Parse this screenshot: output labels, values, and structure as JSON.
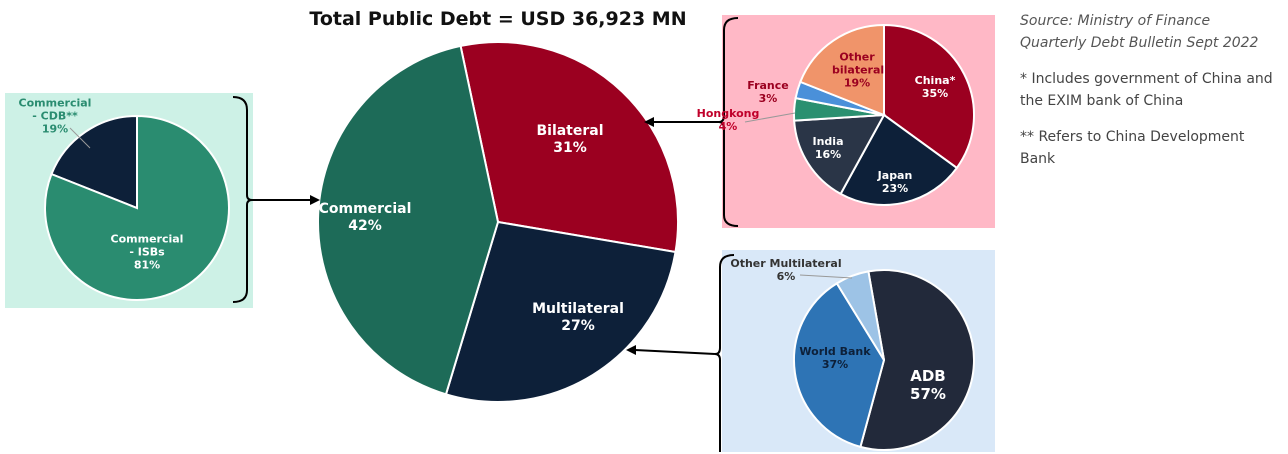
{
  "chart_data": [
    {
      "type": "pie",
      "title": "Total Public Debt = USD 36,923 MN",
      "categories": [
        "Bilateral",
        "Multilateral",
        "Commercial"
      ],
      "values": [
        31,
        27,
        42
      ],
      "value_labels": [
        "31%",
        "27%",
        "42%"
      ],
      "colors": [
        "#9b0020",
        "#0d2039",
        "#1d6b58"
      ]
    },
    {
      "type": "pie",
      "categories": [
        "Commercial - CDB**",
        "Commercial - ISBs"
      ],
      "values": [
        19,
        81
      ],
      "value_labels": [
        "19%",
        "81%"
      ],
      "colors": [
        "#0d2039",
        "#2a8c70"
      ]
    },
    {
      "type": "pie",
      "categories": [
        "China*",
        "Japan",
        "India",
        "Hongkong",
        "France",
        "Other bilateral"
      ],
      "values": [
        35,
        23,
        16,
        4,
        3,
        19
      ],
      "value_labels": [
        "35%",
        "23%",
        "16%",
        "4%",
        "3%",
        "19%"
      ],
      "colors": [
        "#9b0020",
        "#0d2039",
        "#2a3547",
        "#2a9070",
        "#4a90d9",
        "#f0946a"
      ]
    },
    {
      "type": "pie",
      "categories": [
        "ADB",
        "World Bank",
        "Other Multilateral"
      ],
      "values": [
        57,
        37,
        6
      ],
      "value_labels": [
        "57%",
        "37%",
        "6%"
      ],
      "colors": [
        "#22293a",
        "#2e74b5",
        "#9dc3e6"
      ]
    }
  ],
  "notes": [
    "Source: Ministry of Finance Quarterly Debt Bulletin Sept 2022",
    "* Includes government of China and the EXIM bank of China",
    "** Refers to China Development Bank"
  ]
}
